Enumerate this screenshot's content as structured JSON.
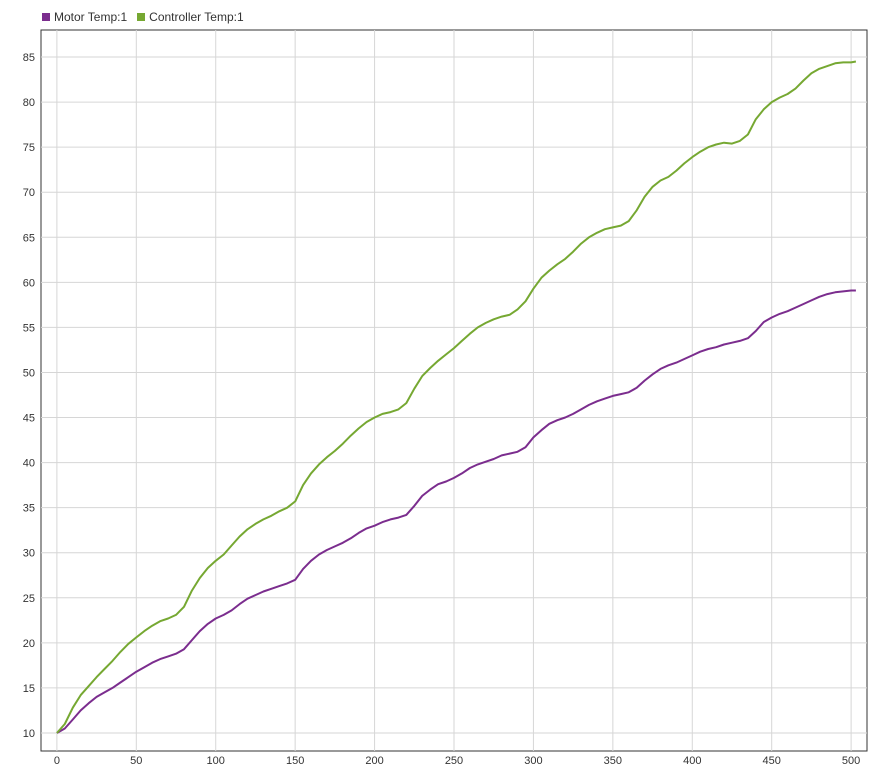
{
  "chart_data": {
    "type": "line",
    "title": "",
    "xlabel": "",
    "ylabel": "",
    "xlim": [
      -10,
      510
    ],
    "ylim": [
      8,
      88
    ],
    "x_ticks": [
      0,
      50,
      100,
      150,
      200,
      250,
      300,
      350,
      400,
      450,
      500
    ],
    "y_ticks": [
      10,
      15,
      20,
      25,
      30,
      35,
      40,
      45,
      50,
      55,
      60,
      65,
      70,
      75,
      80,
      85
    ],
    "grid": true,
    "legend_position": "top-left",
    "series": [
      {
        "name": "Motor Temp:1",
        "color": "#7b2d8e",
        "x": [
          0,
          5,
          10,
          15,
          20,
          25,
          30,
          35,
          40,
          45,
          50,
          55,
          60,
          65,
          70,
          75,
          80,
          85,
          90,
          95,
          100,
          105,
          110,
          115,
          120,
          125,
          130,
          135,
          140,
          145,
          150,
          155,
          160,
          165,
          170,
          175,
          180,
          185,
          190,
          195,
          200,
          205,
          210,
          215,
          220,
          225,
          230,
          235,
          240,
          245,
          250,
          255,
          260,
          265,
          270,
          275,
          280,
          285,
          290,
          295,
          300,
          305,
          310,
          315,
          320,
          325,
          330,
          335,
          340,
          345,
          350,
          355,
          360,
          365,
          370,
          375,
          380,
          385,
          390,
          395,
          400,
          405,
          410,
          415,
          420,
          425,
          430,
          435,
          440,
          445,
          450,
          455,
          460,
          465,
          470,
          475,
          480,
          485,
          490,
          495,
          500,
          503
        ],
        "values": [
          10.0,
          10.5,
          11.5,
          12.5,
          13.3,
          14.0,
          14.5,
          15.0,
          15.6,
          16.2,
          16.8,
          17.3,
          17.8,
          18.2,
          18.5,
          18.8,
          19.3,
          20.3,
          21.3,
          22.1,
          22.7,
          23.1,
          23.6,
          24.3,
          24.9,
          25.3,
          25.7,
          26.0,
          26.3,
          26.6,
          27.0,
          28.2,
          29.1,
          29.8,
          30.3,
          30.7,
          31.1,
          31.6,
          32.2,
          32.7,
          33.0,
          33.4,
          33.7,
          33.9,
          34.2,
          35.2,
          36.3,
          37.0,
          37.6,
          37.9,
          38.3,
          38.8,
          39.4,
          39.8,
          40.1,
          40.4,
          40.8,
          41.0,
          41.2,
          41.7,
          42.8,
          43.6,
          44.3,
          44.7,
          45.0,
          45.4,
          45.9,
          46.4,
          46.8,
          47.1,
          47.4,
          47.6,
          47.8,
          48.3,
          49.1,
          49.8,
          50.4,
          50.8,
          51.1,
          51.5,
          51.9,
          52.3,
          52.6,
          52.8,
          53.1,
          53.3,
          53.5,
          53.8,
          54.6,
          55.6,
          56.1,
          56.5,
          56.8,
          57.2,
          57.6,
          58.0,
          58.4,
          58.7,
          58.9,
          59.0,
          59.1,
          59.1
        ]
      },
      {
        "name": "Controller Temp:1",
        "color": "#76a832",
        "x": [
          0,
          5,
          10,
          15,
          20,
          25,
          30,
          35,
          40,
          45,
          50,
          55,
          60,
          65,
          70,
          75,
          80,
          85,
          90,
          95,
          100,
          105,
          110,
          115,
          120,
          125,
          130,
          135,
          140,
          145,
          150,
          155,
          160,
          165,
          170,
          175,
          180,
          185,
          190,
          195,
          200,
          205,
          210,
          215,
          220,
          225,
          230,
          235,
          240,
          245,
          250,
          255,
          260,
          265,
          270,
          275,
          280,
          285,
          290,
          295,
          300,
          305,
          310,
          315,
          320,
          325,
          330,
          335,
          340,
          345,
          350,
          355,
          360,
          365,
          370,
          375,
          380,
          385,
          390,
          395,
          400,
          405,
          410,
          415,
          420,
          425,
          430,
          435,
          440,
          445,
          450,
          455,
          460,
          465,
          470,
          475,
          480,
          485,
          490,
          495,
          500,
          503
        ],
        "values": [
          10.0,
          11.0,
          12.8,
          14.2,
          15.2,
          16.2,
          17.1,
          18.0,
          19.0,
          19.9,
          20.6,
          21.3,
          21.9,
          22.4,
          22.7,
          23.1,
          24.0,
          25.8,
          27.2,
          28.3,
          29.1,
          29.8,
          30.8,
          31.8,
          32.6,
          33.2,
          33.7,
          34.1,
          34.6,
          35.0,
          35.7,
          37.5,
          38.8,
          39.8,
          40.6,
          41.3,
          42.1,
          43.0,
          43.8,
          44.5,
          45.0,
          45.4,
          45.6,
          45.9,
          46.6,
          48.2,
          49.6,
          50.5,
          51.3,
          52.0,
          52.7,
          53.5,
          54.3,
          55.0,
          55.5,
          55.9,
          56.2,
          56.4,
          57.0,
          57.9,
          59.3,
          60.5,
          61.3,
          62.0,
          62.6,
          63.4,
          64.3,
          65.0,
          65.5,
          65.9,
          66.1,
          66.3,
          66.8,
          68.0,
          69.5,
          70.6,
          71.3,
          71.7,
          72.4,
          73.2,
          73.9,
          74.5,
          75.0,
          75.3,
          75.5,
          75.4,
          75.7,
          76.4,
          78.1,
          79.2,
          80.0,
          80.5,
          80.9,
          81.5,
          82.4,
          83.2,
          83.7,
          84.0,
          84.3,
          84.4,
          84.4,
          84.5
        ]
      }
    ]
  }
}
